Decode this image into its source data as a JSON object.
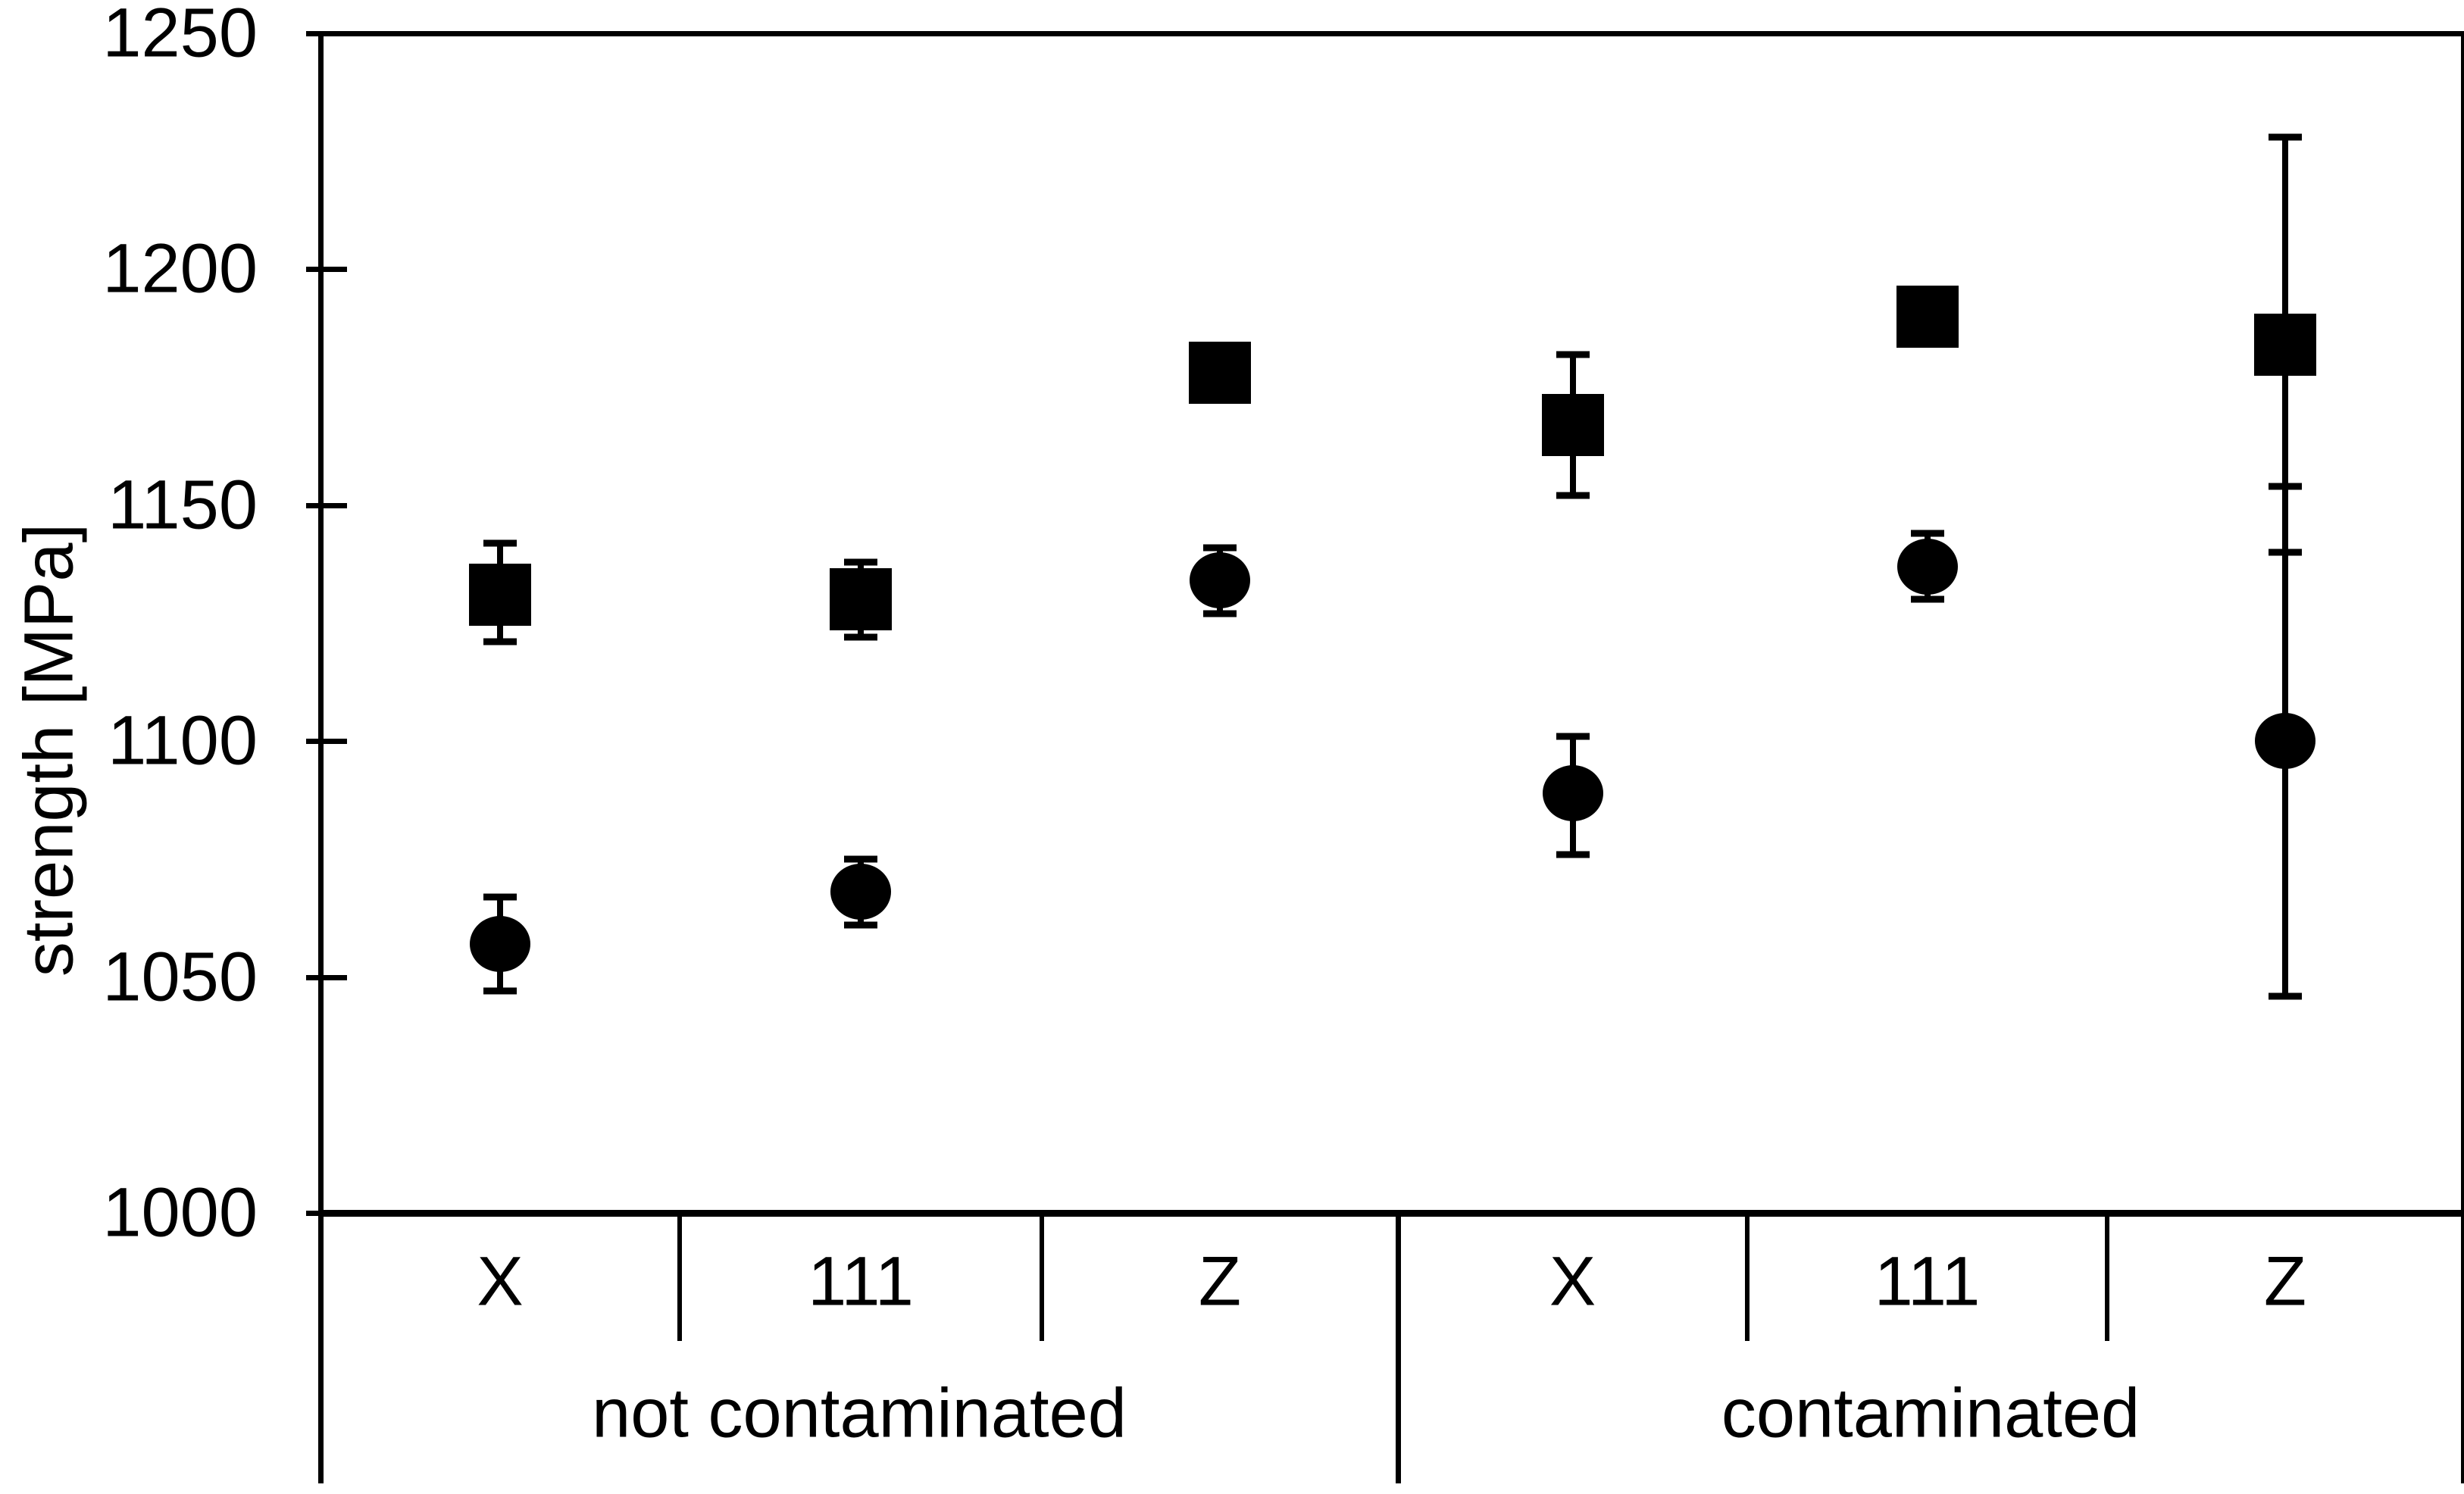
{
  "figure": {
    "background": "#ffffff",
    "ink": "#000000"
  },
  "y_axis": {
    "label": "strength [MPa]",
    "min": 1000,
    "max": 1250,
    "tick_step": 50,
    "ticks": [
      1250,
      1200,
      1150,
      1100,
      1050,
      1000
    ]
  },
  "x_axis": {
    "categories": [
      "X",
      "111",
      "Z",
      "X",
      "111",
      "Z"
    ],
    "groups": [
      {
        "label": "not contaminated",
        "span": 3
      },
      {
        "label": "contaminated",
        "span": 3
      }
    ]
  },
  "chart_data": {
    "type": "scatter",
    "title": "",
    "xlabel": "",
    "ylabel": "strength [MPa]",
    "ylim": [
      1000,
      1250
    ],
    "ytick_step": 50,
    "grid": false,
    "legend": "none",
    "categories": [
      "X",
      "111",
      "Z",
      "X",
      "111",
      "Z"
    ],
    "category_groups": [
      "not contaminated",
      "not contaminated",
      "not contaminated",
      "contaminated",
      "contaminated",
      "contaminated"
    ],
    "series": [
      {
        "name": "square-marker-series",
        "marker": "square",
        "values": [
          1131,
          1130,
          1178,
          1167,
          1190,
          1184
        ],
        "error_plus": [
          11,
          8,
          0,
          15,
          0,
          44
        ],
        "error_minus": [
          10,
          8,
          0,
          15,
          0,
          44
        ]
      },
      {
        "name": "circle-marker-series",
        "marker": "circle",
        "values": [
          1057,
          1068,
          1134,
          1089,
          1137,
          1100
        ],
        "error_plus": [
          10,
          7,
          7,
          12,
          7,
          54
        ],
        "error_minus": [
          10,
          7,
          7,
          13,
          7,
          54
        ]
      }
    ]
  }
}
